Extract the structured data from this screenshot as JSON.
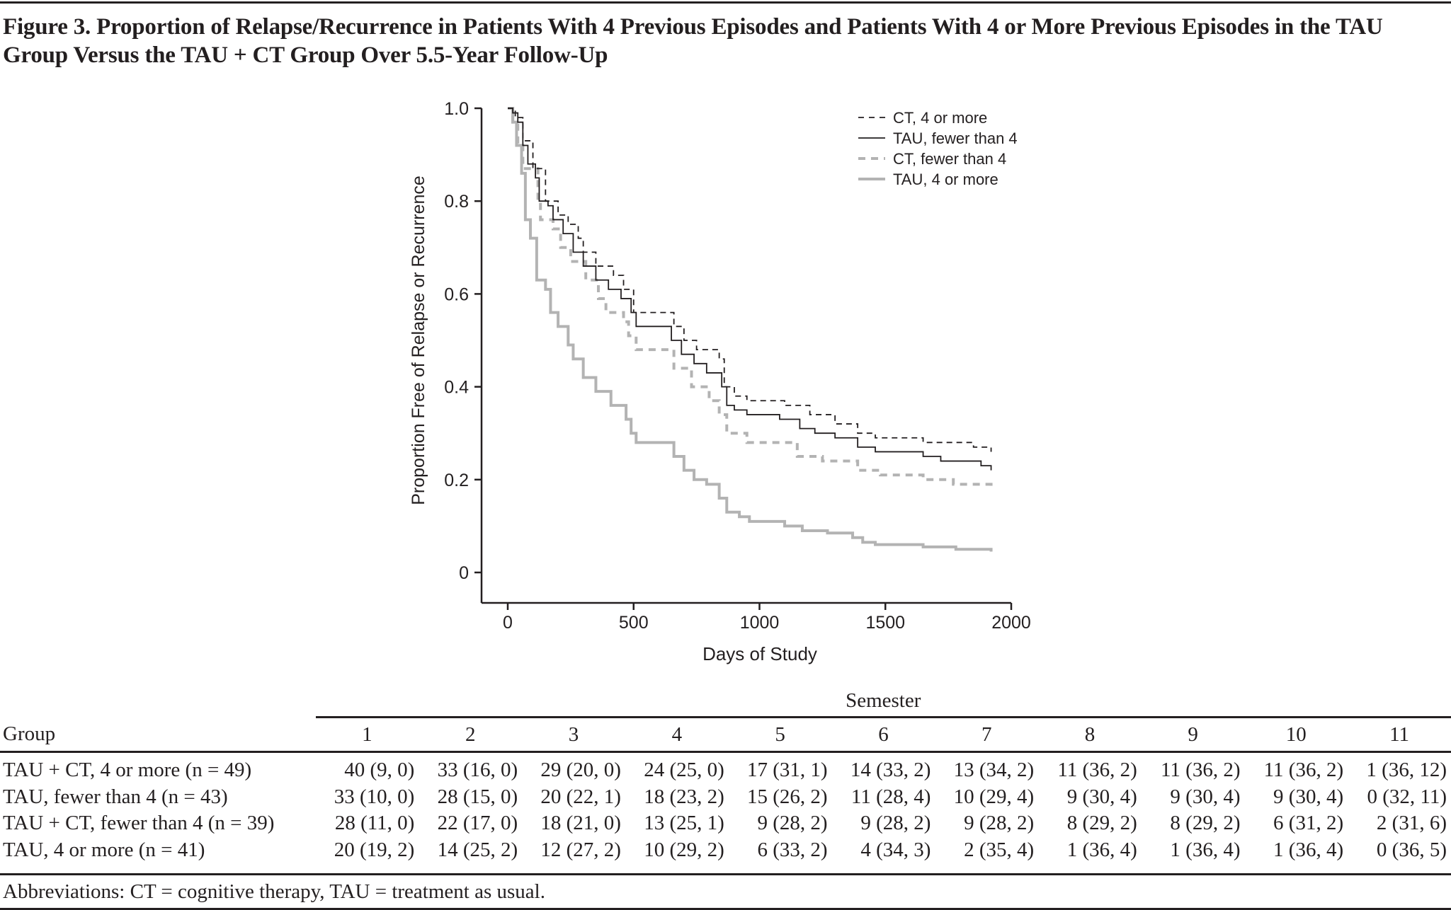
{
  "title": "Figure 3. Proportion of Relapse/Recurrence in Patients With 4 Previous Episodes and Patients With 4 or More Previous Episodes in the TAU Group Versus the TAU + CT Group Over 5.5-Year Follow-Up",
  "chart_data": {
    "type": "line",
    "step": true,
    "xlabel": "Days of Study",
    "ylabel": "Proportion Free of Relapse or Recurrence",
    "xlim": [
      0,
      2000
    ],
    "ylim": [
      0,
      1.0
    ],
    "xticks": [
      "0",
      "500",
      "1000",
      "1500",
      "2000"
    ],
    "yticks": [
      "0",
      "0.2",
      "0.4",
      "0.6",
      "0.8",
      "1.0"
    ],
    "legend_position": "top-right",
    "grid": false,
    "series": [
      {
        "name": "CT, 4 or more",
        "color": "#231f20",
        "style": "dashed",
        "x": [
          0,
          30,
          60,
          100,
          150,
          200,
          240,
          280,
          300,
          350,
          420,
          460,
          500,
          660,
          700,
          750,
          840,
          860,
          900,
          950,
          1100,
          1200,
          1300,
          1390,
          1460,
          1650,
          1850,
          1920
        ],
        "y": [
          1.0,
          0.98,
          0.93,
          0.87,
          0.8,
          0.77,
          0.75,
          0.72,
          0.69,
          0.66,
          0.64,
          0.61,
          0.56,
          0.53,
          0.5,
          0.48,
          0.46,
          0.4,
          0.38,
          0.37,
          0.36,
          0.34,
          0.32,
          0.3,
          0.29,
          0.28,
          0.27,
          0.26
        ]
      },
      {
        "name": "TAU, fewer than 4",
        "color": "#231f20",
        "style": "solid",
        "x": [
          0,
          20,
          40,
          60,
          80,
          110,
          125,
          160,
          180,
          220,
          260,
          300,
          350,
          400,
          450,
          490,
          510,
          650,
          690,
          740,
          790,
          850,
          870,
          900,
          950,
          1080,
          1160,
          1220,
          1300,
          1390,
          1460,
          1650,
          1720,
          1880,
          1920
        ],
        "y": [
          1.0,
          0.99,
          0.97,
          0.92,
          0.88,
          0.85,
          0.8,
          0.79,
          0.76,
          0.73,
          0.69,
          0.66,
          0.63,
          0.61,
          0.59,
          0.56,
          0.53,
          0.5,
          0.47,
          0.45,
          0.43,
          0.4,
          0.36,
          0.35,
          0.34,
          0.33,
          0.31,
          0.3,
          0.29,
          0.27,
          0.26,
          0.25,
          0.24,
          0.23,
          0.22
        ]
      },
      {
        "name": "CT, fewer than 4",
        "color": "#b3b3b3",
        "style": "dashed",
        "x": [
          0,
          20,
          40,
          60,
          120,
          130,
          180,
          210,
          250,
          310,
          360,
          390,
          460,
          480,
          510,
          660,
          730,
          800,
          840,
          870,
          950,
          1150,
          1250,
          1390,
          1480,
          1650,
          1770,
          1920
        ],
        "y": [
          1.0,
          0.97,
          0.92,
          0.87,
          0.8,
          0.76,
          0.74,
          0.7,
          0.67,
          0.63,
          0.59,
          0.56,
          0.54,
          0.51,
          0.48,
          0.44,
          0.4,
          0.37,
          0.34,
          0.3,
          0.28,
          0.25,
          0.24,
          0.22,
          0.21,
          0.2,
          0.19,
          0.18
        ]
      },
      {
        "name": "TAU, 4 or more",
        "color": "#b3b3b3",
        "style": "solid",
        "x": [
          0,
          20,
          35,
          55,
          70,
          90,
          115,
          150,
          170,
          200,
          240,
          260,
          300,
          350,
          410,
          470,
          490,
          510,
          660,
          700,
          740,
          790,
          840,
          870,
          920,
          960,
          1100,
          1170,
          1270,
          1370,
          1410,
          1460,
          1650,
          1780,
          1920
        ],
        "y": [
          1.0,
          0.97,
          0.92,
          0.86,
          0.76,
          0.72,
          0.63,
          0.61,
          0.56,
          0.53,
          0.49,
          0.46,
          0.42,
          0.39,
          0.36,
          0.33,
          0.3,
          0.28,
          0.25,
          0.22,
          0.2,
          0.19,
          0.16,
          0.13,
          0.12,
          0.11,
          0.1,
          0.09,
          0.085,
          0.075,
          0.065,
          0.06,
          0.055,
          0.05,
          0.045
        ]
      }
    ]
  },
  "table": {
    "spanner": "Semester",
    "group_header": "Group",
    "columns": [
      "1",
      "2",
      "3",
      "4",
      "5",
      "6",
      "7",
      "8",
      "9",
      "10",
      "11"
    ],
    "rows": [
      {
        "group": "TAU + CT, 4 or more (n = 49)",
        "cells": [
          "40 (9, 0)",
          "33 (16, 0)",
          "29 (20, 0)",
          "24 (25, 0)",
          "17 (31, 1)",
          "14 (33, 2)",
          "13 (34, 2)",
          "11 (36, 2)",
          "11 (36, 2)",
          "11 (36, 2)",
          "1 (36, 12)"
        ]
      },
      {
        "group": "TAU, fewer than 4 (n = 43)",
        "cells": [
          "33 (10, 0)",
          "28 (15, 0)",
          "20 (22, 1)",
          "18 (23, 2)",
          "15 (26, 2)",
          "11 (28, 4)",
          "10 (29, 4)",
          "9 (30, 4)",
          "9 (30, 4)",
          "9 (30, 4)",
          "0 (32, 11)"
        ]
      },
      {
        "group": "TAU + CT, fewer than 4 (n = 39)",
        "cells": [
          "28 (11, 0)",
          "22 (17, 0)",
          "18 (21, 0)",
          "13 (25, 1)",
          "9 (28, 2)",
          "9 (28, 2)",
          "9 (28, 2)",
          "8 (29, 2)",
          "8 (29, 2)",
          "6 (31, 2)",
          "2 (31, 6)"
        ]
      },
      {
        "group": "TAU, 4 or more (n = 41)",
        "cells": [
          "20 (19, 2)",
          "14 (25, 2)",
          "12 (27, 2)",
          "10 (29, 2)",
          "6 (33, 2)",
          "4 (34, 3)",
          "2 (35, 4)",
          "1 (36, 4)",
          "1 (36, 4)",
          "1 (36, 4)",
          "0 (36, 5)"
        ]
      }
    ],
    "footnote": "Abbreviations: CT = cognitive therapy, TAU = treatment as usual."
  }
}
